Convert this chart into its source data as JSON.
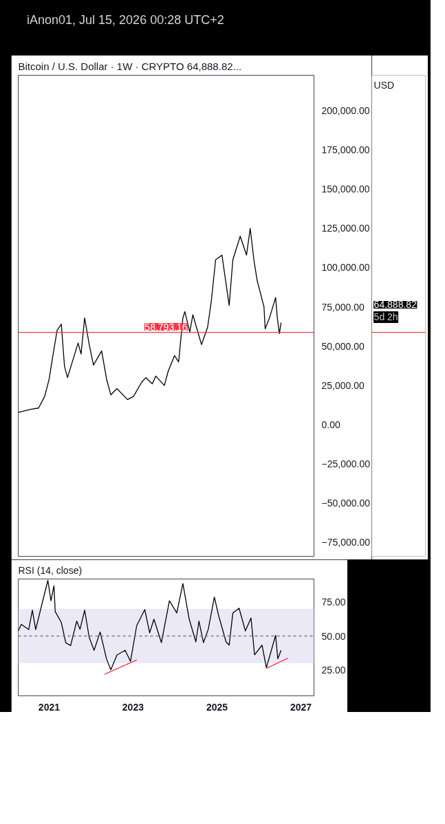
{
  "chart_data": [
    {
      "type": "line",
      "title": "Bitcoin / U.S. Dollar · 1W · CRYPTO  64,888.82...",
      "subtitle": "iAnon01, Jul 15, 2026 00:28 UTC+2",
      "ylabel": "USD",
      "x": [
        "2020-04-07",
        "2020-07-24",
        "2020-10-01",
        "2020-11-23",
        "2021-01-01",
        "2021-01-27",
        "2021-03-11",
        "2021-04-17",
        "2021-05-15",
        "2021-06-10",
        "2021-09-10",
        "2021-10-06",
        "2021-11-06",
        "2021-12-16",
        "2022-01-22",
        "2022-04-03",
        "2022-05-16",
        "2022-06-22",
        "2022-08-14",
        "2022-11-14",
        "2023-01-05",
        "2023-03-17",
        "2023-04-23",
        "2023-06-18",
        "2023-07-18",
        "2023-10-01",
        "2023-11-03",
        "2023-12-28",
        "2024-02-02",
        "2024-03-10",
        "2024-03-27",
        "2024-05-09",
        "2024-06-05",
        "2024-08-19",
        "2024-10-11",
        "2024-11-13",
        "2024-12-20",
        "2025-02-13",
        "2025-04-17",
        "2025-05-19",
        "2025-07-22",
        "2025-09-15",
        "2025-10-17",
        "2025-11-18",
        "2025-12-16",
        "2026-02-14",
        "2026-02-24",
        "2026-04-03",
        "2026-05-26",
        "2026-06-10",
        "2026-06-28",
        "2026-07-13"
      ],
      "series": [
        {
          "color": "#000000",
          "values": [
            7800,
            9800,
            10600,
            18000,
            29000,
            41000,
            60000,
            64000,
            37000,
            30000,
            52000,
            45000,
            68000,
            51000,
            38000,
            47000,
            29000,
            19000,
            23000,
            16000,
            18000,
            27000,
            30000,
            26000,
            31000,
            25000,
            34000,
            44000,
            40000,
            68000,
            72000,
            59000,
            70000,
            51000,
            62000,
            79000,
            105000,
            108000,
            76000,
            105000,
            120000,
            108000,
            125000,
            105000,
            92000,
            75000,
            61000,
            68000,
            81000,
            68000,
            58000,
            65000
          ]
        }
      ],
      "xlim": [
        "2020-04-07",
        "2027-04-25"
      ],
      "ylim": [
        -83800,
        222500
      ],
      "tick_labels": "y",
      "yticks": [
        {
          "value": -75000,
          "label": "−75,000.00"
        },
        {
          "value": -50000,
          "label": "−50,000.00"
        },
        {
          "value": -25000,
          "label": "−25,000.00"
        },
        {
          "value": 0,
          "label": "0.00"
        },
        {
          "value": 25000,
          "label": "25,000.00"
        },
        {
          "value": 50000,
          "label": "50,000.00"
        },
        {
          "value": 75000,
          "label": "75,000.00"
        },
        {
          "value": 100000,
          "label": "100,000.00"
        },
        {
          "value": 125000,
          "label": "125,000.00"
        },
        {
          "value": 150000,
          "label": "150,000.00"
        },
        {
          "value": 175000,
          "label": "175,000.00"
        },
        {
          "value": 200000,
          "label": "200,000.00"
        }
      ],
      "ref_lines": [
        {
          "axis": "y",
          "value": 58793.16,
          "label": "58,793.16",
          "color": "#f23645"
        }
      ],
      "annotations": [
        "64,888.82",
        "5d 2h"
      ]
    },
    {
      "type": "line",
      "title": "RSI (14, close)",
      "x": [
        "2020-04-07",
        "2020-05-04",
        "2020-07-07",
        "2020-08-08",
        "2020-09-06",
        "2020-10-24",
        "2020-12-21",
        "2021-01-17",
        "2021-02-12",
        "2021-02-23",
        "2021-04-17",
        "2021-05-26",
        "2021-07-07",
        "2021-08-29",
        "2021-09-27",
        "2021-11-06",
        "2021-12-16",
        "2022-01-27",
        "2022-03-21",
        "2022-05-16",
        "2022-06-22",
        "2022-08-14",
        "2022-10-24",
        "2022-12-10",
        "2023-02-02",
        "2023-04-13",
        "2023-05-26",
        "2023-07-02",
        "2023-09-05",
        "2023-11-14",
        "2024-01-17",
        "2024-03-10",
        "2024-05-04",
        "2024-07-01",
        "2024-07-28",
        "2024-09-05",
        "2024-10-17",
        "2024-12-09",
        "2025-01-16",
        "2025-03-21",
        "2025-04-17",
        "2025-05-19",
        "2025-07-12",
        "2025-09-05",
        "2025-10-24",
        "2025-11-24",
        "2026-01-28",
        "2026-03-07",
        "2026-04-08",
        "2026-05-26",
        "2026-06-14",
        "2026-07-13"
      ],
      "series": [
        {
          "color": "#000000",
          "values": [
            53.8,
            58.6,
            54.8,
            69,
            54.8,
            71.4,
            91,
            76,
            87,
            68,
            60,
            45,
            43,
            61,
            55,
            69,
            49,
            39.5,
            53,
            33,
            25.2,
            36,
            39.5,
            31.4,
            57.6,
            69.5,
            52.4,
            62.4,
            45.2,
            76,
            67,
            88.6,
            62.4,
            45.7,
            61,
            45.2,
            55,
            78.6,
            64.8,
            45.7,
            43.3,
            67,
            70.5,
            53.8,
            63.3,
            36.2,
            43.3,
            26.7,
            36.2,
            50.5,
            33.3,
            39.5
          ]
        },
        {
          "type": "line",
          "color": "#f23645",
          "x": [
            "2022-04-28",
            "2023-02-02"
          ],
          "values": [
            21.9,
            32.4
          ]
        },
        {
          "type": "line",
          "color": "#f23645",
          "x": [
            "2026-03-07",
            "2026-09-10"
          ],
          "values": [
            26.2,
            33.8
          ]
        }
      ],
      "xlim": [
        "2020-04-07",
        "2027-04-25"
      ],
      "xticks": [
        {
          "value": "2021-01-01",
          "label": "2021"
        },
        {
          "value": "2023-01-01",
          "label": "2023"
        },
        {
          "value": "2025-01-01",
          "label": "2025"
        },
        {
          "value": "2027-01-01",
          "label": "2027"
        }
      ],
      "ylim": [
        6,
        92
      ],
      "yticks": [
        {
          "value": 25,
          "label": "25.00"
        },
        {
          "value": 50,
          "label": "50.00"
        },
        {
          "value": 75,
          "label": "75.00"
        }
      ],
      "ref_lines": [
        {
          "axis": "y",
          "value": 50,
          "color": "#787b86",
          "line_style": "dashed"
        }
      ],
      "bands": [
        {
          "axis": "y",
          "from": 30,
          "to": 70,
          "color": "#ece9f7"
        }
      ]
    }
  ]
}
